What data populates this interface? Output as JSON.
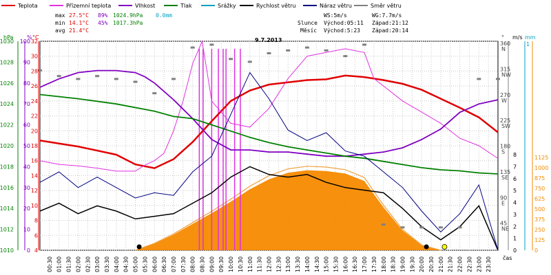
{
  "legend": [
    {
      "label": "Teplota",
      "color": "#e00000"
    },
    {
      "label": "Přízemní teplota",
      "color": "#e030e0"
    },
    {
      "label": "Vlhkost",
      "color": "#8000c0"
    },
    {
      "label": "Tlak",
      "color": "#008000"
    },
    {
      "label": "Srážky",
      "color": "#00a0c0"
    },
    {
      "label": "Rychlost větru",
      "color": "#000000"
    },
    {
      "label": "Náraz větru",
      "color": "#000080"
    },
    {
      "label": "Směr větru",
      "color": "#808080"
    }
  ],
  "stats": {
    "max": {
      "label": "max",
      "temp": "27.5°C",
      "hum": "89%",
      "press": "1024.9hPa",
      "rain": "0.0mm"
    },
    "min": {
      "label": "min",
      "temp": "14.1°C",
      "hum": "45%",
      "press": "1017.3hPa"
    },
    "avg": {
      "label": "avg",
      "temp": "21.4°C"
    }
  },
  "wind_info": {
    "ws": "WS:5m/s",
    "wg": "WG:7.7m/s"
  },
  "sun": {
    "label": "Slunce",
    "rise": "Východ:05:11",
    "set": "Západ:21:12"
  },
  "moon": {
    "label": "Měsíc",
    "rise": "Východ:5:23",
    "set": "Západ:20:14"
  },
  "chart_data": {
    "type": "line",
    "title": "9.7.2013",
    "xlabel": "čas",
    "axes": {
      "pressure": {
        "unit": "hPa",
        "min": 1010,
        "max": 1030,
        "ticks": [
          "1010",
          "1012",
          "1014",
          "1016",
          "1018",
          "1020",
          "1022",
          "1024",
          "1026",
          "1028",
          "1030"
        ]
      },
      "humidity": {
        "unit": "%",
        "min": 0,
        "max": 100,
        "ticks": [
          "0",
          "10",
          "20",
          "30",
          "40",
          "50",
          "60",
          "70",
          "80",
          "90",
          "100"
        ]
      },
      "temperature": {
        "unit": "°C",
        "min": 4,
        "max": 32,
        "ticks": [
          "4",
          "6",
          "8",
          "10",
          "12",
          "14",
          "16",
          "18",
          "20",
          "22",
          "24",
          "26",
          "28",
          "30",
          "32"
        ]
      },
      "direction": {
        "unit": "°",
        "ticks": [
          "0",
          "45",
          "90",
          "135",
          "180",
          "225",
          "270",
          "315",
          "360"
        ],
        "labels": [
          "",
          "NE",
          "E",
          "SE",
          "S",
          "SW",
          "W",
          "NW",
          "N"
        ]
      },
      "wind": {
        "unit": "m/s",
        "min": 0,
        "max": 8,
        "ticks": [
          "0",
          "1",
          "2",
          "3",
          "4",
          "5",
          "6",
          "7",
          "8"
        ]
      },
      "rain": {
        "unit": "mm",
        "ticks": [
          "1"
        ]
      },
      "radiation": {
        "ticks": [
          "0",
          "125",
          "250",
          "375",
          "500",
          "625",
          "750",
          "875",
          "1000",
          "1125"
        ]
      }
    },
    "x_ticks": [
      "00:30",
      "01:00",
      "01:30",
      "02:00",
      "02:30",
      "03:00",
      "03:30",
      "04:00",
      "04:30",
      "05:00",
      "05:30",
      "06:00",
      "06:30",
      "07:00",
      "07:30",
      "08:00",
      "08:30",
      "09:00",
      "09:30",
      "10:00",
      "10:30",
      "11:00",
      "11:30",
      "12:00",
      "12:30",
      "13:00",
      "13:30",
      "14:00",
      "14:30",
      "15:00",
      "15:30",
      "16:00",
      "16:30",
      "17:00",
      "17:30",
      "18:00",
      "18:30",
      "19:00",
      "19:30",
      "20:00",
      "20:30",
      "21:00",
      "21:30",
      "22:00",
      "22:30",
      "23:00",
      "23:30"
    ],
    "series": [
      {
        "name": "Teplota",
        "axis": "temperature",
        "x": [
          0,
          2,
          4,
          5,
          6,
          7,
          8,
          9,
          10,
          11,
          12,
          13,
          14,
          15,
          16,
          17,
          18,
          19,
          20,
          21,
          22,
          23,
          24
        ],
        "y": [
          18.7,
          17.9,
          16.8,
          15.5,
          15.0,
          16.2,
          18.5,
          21.3,
          24.0,
          25.4,
          26.2,
          26.5,
          26.8,
          26.9,
          27.4,
          27.2,
          26.8,
          26.3,
          25.5,
          24.3,
          23.1,
          21.8,
          19.8
        ]
      },
      {
        "name": "Přízemní teplota",
        "axis": "temperature",
        "x": [
          0,
          1,
          2,
          3,
          4,
          5,
          5.5,
          6,
          6.5,
          7,
          7.5,
          8,
          8.5,
          9,
          10,
          11,
          12,
          13,
          14,
          15,
          16,
          17,
          17.5,
          18,
          19,
          20,
          21,
          22,
          23,
          24
        ],
        "y": [
          16.0,
          15.5,
          15.3,
          15.0,
          14.6,
          14.6,
          15.4,
          16.0,
          17.0,
          20.0,
          24.0,
          29.0,
          32.0,
          24.0,
          21.0,
          20.5,
          23.0,
          27.0,
          30.0,
          30.5,
          31.0,
          30.5,
          27.0,
          26.0,
          24.0,
          22.5,
          21.0,
          19.0,
          18.0,
          16.3
        ]
      },
      {
        "name": "Vlhkost",
        "axis": "humidity",
        "x": [
          0,
          1,
          2,
          3,
          4,
          5,
          5.5,
          6,
          7,
          8,
          9,
          10,
          11,
          12,
          13,
          14,
          15,
          16,
          17,
          18,
          19,
          20,
          21,
          22,
          23,
          24
        ],
        "y": [
          78,
          82,
          85,
          86,
          86,
          85,
          83,
          80,
          72,
          63,
          53,
          48,
          48,
          47,
          47,
          46,
          45,
          45,
          46,
          47,
          49,
          53,
          58,
          66,
          70,
          72
        ]
      },
      {
        "name": "Tlak",
        "axis": "pressure",
        "x": [
          0,
          2,
          4,
          6,
          7,
          8,
          9,
          10,
          11,
          12,
          13,
          14,
          15,
          16,
          17,
          18,
          19,
          20,
          21,
          22,
          23,
          24
        ],
        "y": [
          1024.9,
          1024.5,
          1024.0,
          1023.3,
          1022.8,
          1022.6,
          1022.0,
          1021.4,
          1020.8,
          1020.3,
          1019.9,
          1019.6,
          1019.3,
          1019.0,
          1018.8,
          1018.5,
          1018.2,
          1017.9,
          1017.7,
          1017.6,
          1017.4,
          1017.3
        ]
      },
      {
        "name": "Rychlost větru",
        "axis": "wind",
        "x": [
          0,
          1,
          2,
          3,
          4,
          5,
          6,
          7,
          8,
          9,
          10,
          11,
          12,
          13,
          14,
          15,
          16,
          17,
          18,
          19,
          20,
          21,
          22,
          23,
          24
        ],
        "y": [
          1.5,
          1.8,
          1.4,
          1.7,
          1.5,
          1.2,
          1.3,
          1.4,
          1.8,
          2.2,
          2.8,
          3.2,
          2.9,
          2.8,
          2.9,
          2.6,
          2.4,
          2.3,
          2.2,
          1.6,
          0.9,
          0.4,
          0.9,
          1.7,
          0.0
        ]
      },
      {
        "name": "Náraz větru",
        "axis": "wind",
        "x": [
          0,
          1,
          2,
          3,
          4,
          5,
          6,
          7,
          8,
          9,
          10,
          11,
          12,
          13,
          14,
          15,
          16,
          17,
          18,
          19,
          20,
          21,
          22,
          23,
          24
        ],
        "y": [
          2.6,
          3.0,
          2.4,
          2.8,
          2.4,
          2.0,
          2.2,
          2.1,
          3.0,
          3.6,
          5.2,
          6.8,
          5.8,
          4.6,
          4.2,
          4.5,
          3.8,
          3.6,
          3.0,
          2.4,
          1.5,
          0.7,
          1.4,
          2.5,
          0.0
        ]
      },
      {
        "name": "Směr větru",
        "axis": "direction",
        "x": [
          0,
          1,
          2,
          3,
          4,
          5,
          6,
          7,
          8,
          9,
          10,
          11,
          12,
          13,
          14,
          15,
          16,
          17,
          18,
          19,
          20,
          21,
          22,
          23,
          24
        ],
        "y": [
          315,
          305,
          300,
          305,
          300,
          295,
          275,
          300,
          355,
          360,
          335,
          330,
          345,
          350,
          355,
          350,
          340,
          360,
          45,
          40,
          40,
          40,
          40,
          300,
          300
        ]
      }
    ],
    "radiation": {
      "axis": "radiation",
      "x": [
        5.0,
        6,
        7,
        8,
        9,
        10,
        11,
        12,
        13,
        14,
        15,
        16,
        17,
        18,
        19,
        20,
        21.0
      ],
      "y": [
        0,
        80,
        190,
        320,
        450,
        590,
        740,
        860,
        940,
        970,
        960,
        930,
        840,
        520,
        240,
        60,
        0
      ]
    },
    "grid": true
  }
}
